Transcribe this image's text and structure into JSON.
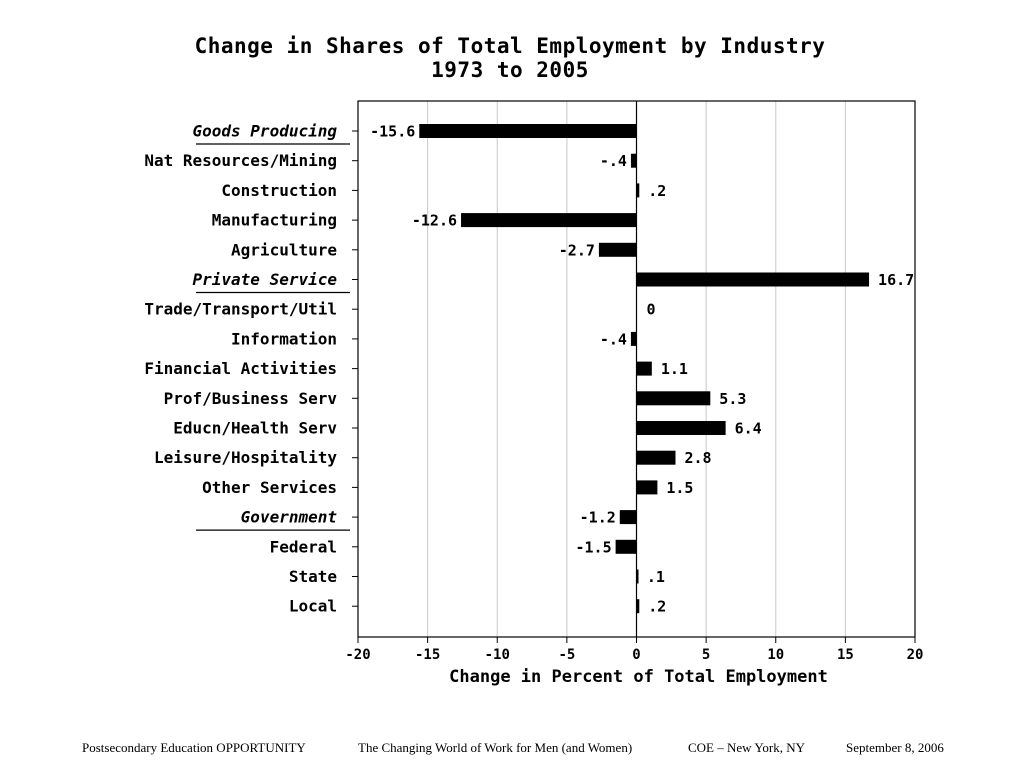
{
  "chart_data": {
    "type": "bar",
    "orientation": "horizontal",
    "title": "Change in Shares of Total Employment by Industry",
    "subtitle": "1973 to 2005",
    "xlabel": "Change in Percent of Total Employment",
    "ylabel": "",
    "xlim": [
      -20,
      20
    ],
    "x_ticks": [
      -20,
      -15,
      -10,
      -5,
      0,
      5,
      10,
      15,
      20
    ],
    "grid": "vertical",
    "legend": "none",
    "bar_color": "#000000",
    "categories": [
      "Goods Producing",
      "Nat Resources/Mining",
      "Construction",
      "Manufacturing",
      "Agriculture",
      "Private Service",
      "Trade/Transport/Util",
      "Information",
      "Financial Activities",
      "Prof/Business Serv",
      "Educn/Health Serv",
      "Leisure/Hospitality",
      "Other Services",
      "Government",
      "Federal",
      "State",
      "Local"
    ],
    "group_headers": [
      "Goods Producing",
      "Private Service",
      "Government"
    ],
    "values": [
      -15.6,
      -0.4,
      0.2,
      -12.6,
      -2.7,
      16.7,
      0,
      -0.4,
      1.1,
      5.3,
      6.4,
      2.8,
      1.5,
      -1.2,
      -1.5,
      0.1,
      0.2
    ],
    "data_labels": [
      "-15.6",
      "-.4",
      ".2",
      "-12.6",
      "-2.7",
      "16.7",
      "0",
      "-.4",
      "1.1",
      "5.3",
      "6.4",
      "2.8",
      "1.5",
      "-1.2",
      "-1.5",
      ".1",
      ".2"
    ]
  },
  "footer": {
    "items": [
      "Postsecondary Education OPPORTUNITY",
      "The Changing World of Work for Men (and Women)",
      "COE – New York, NY",
      "September 8, 2006"
    ]
  }
}
